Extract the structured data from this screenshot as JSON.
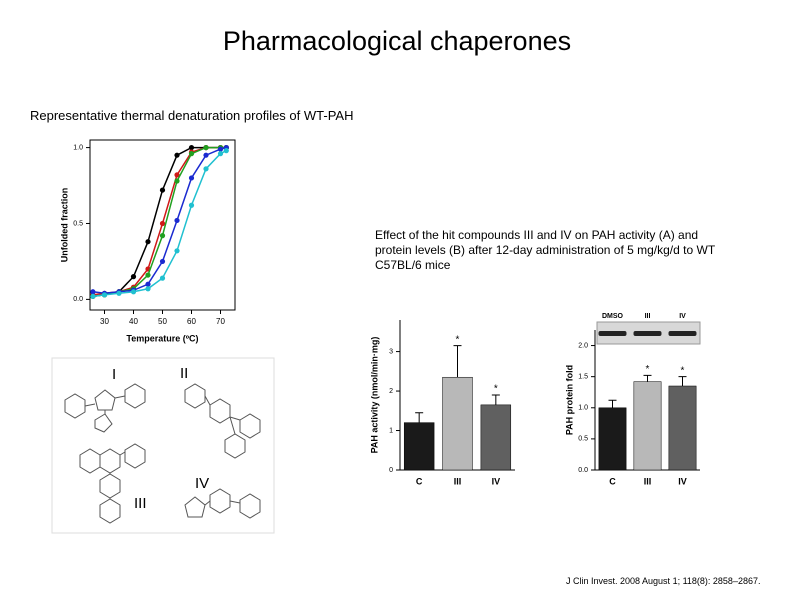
{
  "slide": {
    "title": "Pharmacological chaperones",
    "subtitle": "Representative thermal denaturation profiles of WT-PAH",
    "caption": "Effect of the hit compounds III and IV on PAH activity (A) and protein levels (B) after 12-day administration of 5 mg/kg/d to WT C57BL/6 mice",
    "citation": "J Clin Invest. 2008 August 1; 118(8): 2858–2867."
  },
  "structures": {
    "labels": [
      "I",
      "II",
      "III",
      "IV"
    ]
  },
  "denaturation": {
    "type": "scatter",
    "xlabel": "Temperature (ºC)",
    "ylabel": "Unfolded fraction",
    "x": [
      26,
      30,
      35,
      40,
      45,
      50,
      55,
      60,
      65,
      70,
      72
    ],
    "series": [
      {
        "color": "#000000",
        "values": [
          0.02,
          0.03,
          0.05,
          0.15,
          0.38,
          0.72,
          0.95,
          1.0,
          1.0,
          1.0,
          1.0
        ]
      },
      {
        "color": "#d01818",
        "values": [
          0.03,
          0.04,
          0.05,
          0.08,
          0.2,
          0.5,
          0.82,
          0.97,
          1.0,
          1.0,
          1.0
        ]
      },
      {
        "color": "#20a020",
        "values": [
          0.02,
          0.03,
          0.05,
          0.07,
          0.16,
          0.42,
          0.78,
          0.96,
          1.0,
          1.0,
          1.0
        ]
      },
      {
        "color": "#1a2ad0",
        "values": [
          0.05,
          0.04,
          0.05,
          0.06,
          0.1,
          0.25,
          0.52,
          0.8,
          0.95,
          0.99,
          1.0
        ]
      },
      {
        "color": "#20c0d0",
        "values": [
          0.02,
          0.03,
          0.04,
          0.05,
          0.07,
          0.14,
          0.32,
          0.62,
          0.86,
          0.96,
          0.98
        ]
      }
    ],
    "xlim": [
      25,
      75
    ],
    "ylim": [
      -0.07,
      1.05
    ],
    "xticks": [
      30,
      40,
      50,
      60,
      70
    ],
    "yticks": [
      {
        "value": 0,
        "label": "0.0"
      },
      {
        "value": 0.5,
        "label": "0.5"
      },
      {
        "value": 1,
        "label": "1.0"
      }
    ]
  },
  "activity": {
    "type": "bar",
    "ylabel": "PAH activity (nmol/min·mg)",
    "categories": [
      "C",
      "III",
      "IV"
    ],
    "values": [
      1.2,
      2.35,
      1.65
    ],
    "errors": [
      0.25,
      0.8,
      0.25
    ],
    "colors": [
      "#1a1a1a",
      "#b8b8b8",
      "#606060"
    ],
    "annotations": [
      "*",
      "*"
    ],
    "ylim": [
      0,
      3.8
    ],
    "yticks": [
      0,
      1,
      2,
      3
    ]
  },
  "protein": {
    "type": "bar",
    "ylabel": "PAH protein fold",
    "categories": [
      "C",
      "III",
      "IV"
    ],
    "values": [
      1.0,
      1.42,
      1.35
    ],
    "errors": [
      0.12,
      0.1,
      0.15
    ],
    "colors": [
      "#1a1a1a",
      "#b8b8b8",
      "#606060"
    ],
    "annotations": [
      "*",
      "*"
    ],
    "blot_labels": [
      "DMSO",
      "III",
      "IV"
    ],
    "ylim": [
      0,
      2.25
    ],
    "yticks": [
      {
        "value": 0,
        "label": "0.0"
      },
      {
        "value": 0.5,
        "label": "0.5"
      },
      {
        "value": 1,
        "label": "1.0"
      },
      {
        "value": 1.5,
        "label": "1.5"
      },
      {
        "value": 2,
        "label": "2.0"
      }
    ]
  }
}
